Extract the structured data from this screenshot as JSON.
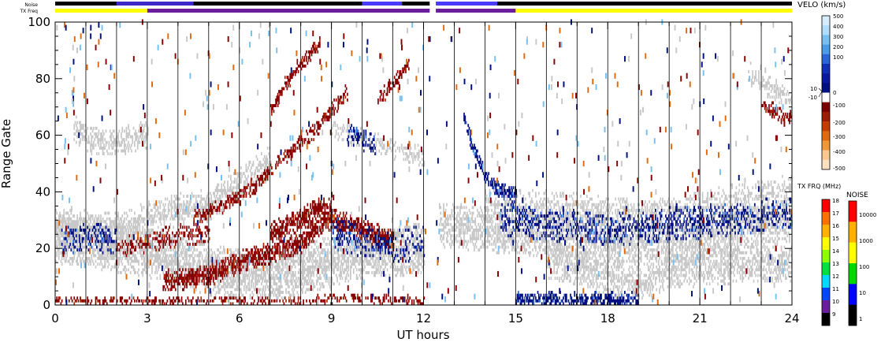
{
  "chart_data": {
    "type": "heatmap",
    "xlabel": "UT hours",
    "ylabel": "Range Gate",
    "xlim": [
      0,
      24
    ],
    "ylim": [
      0,
      100
    ],
    "x_ticks": [
      "0",
      "3",
      "6",
      "9",
      "12",
      "15",
      "18",
      "21",
      "24"
    ],
    "x_tick_values": [
      0,
      3,
      6,
      9,
      12,
      15,
      18,
      21,
      24
    ],
    "y_ticks": [
      "0",
      "20",
      "40",
      "60",
      "80",
      "100"
    ],
    "y_tick_values": [
      0,
      20,
      40,
      60,
      80,
      100
    ],
    "hour_gridlines": true,
    "data_gap": [
      12.2,
      12.4
    ],
    "ground_scatter_color": "#c8c8c8",
    "top_strips": {
      "noise_label": "Noise",
      "txfreq_label": "TX Freq",
      "noise_segments": [
        {
          "start": 0,
          "end": 2.0,
          "color": "#000000"
        },
        {
          "start": 2.0,
          "end": 4.5,
          "color": "#3c28c8"
        },
        {
          "start": 4.5,
          "end": 10.0,
          "color": "#000000"
        },
        {
          "start": 10.0,
          "end": 11.3,
          "color": "#4a3cff"
        },
        {
          "start": 11.3,
          "end": 12.2,
          "color": "#000000"
        },
        {
          "start": 12.4,
          "end": 14.4,
          "color": "#4a3cff"
        },
        {
          "start": 14.4,
          "end": 24,
          "color": "#000000"
        }
      ],
      "txfreq_segments": [
        {
          "start": 0,
          "end": 3.0,
          "color": "#ffff00"
        },
        {
          "start": 3.0,
          "end": 12.2,
          "color": "#6a1e9c"
        },
        {
          "start": 12.4,
          "end": 15.0,
          "color": "#6a1e9c"
        },
        {
          "start": 15.0,
          "end": 24,
          "color": "#ffff00"
        }
      ]
    },
    "velocity_scale": {
      "title": "VELO (km/s)",
      "range": [
        -500,
        500
      ],
      "tick_labels": [
        "500",
        "400",
        "300",
        "200",
        "100",
        "10",
        "0",
        "-10",
        "-100",
        "-200",
        "-300",
        "-400",
        "-500"
      ],
      "colors_top_to_bottom": [
        "#d8ecff",
        "#b0dcff",
        "#78c0f0",
        "#4a9be8",
        "#2a66d8",
        "#1030b8",
        "#0a1aa0",
        "#001080",
        "#ffffff",
        "#7a0000",
        "#9c1c00",
        "#c43c00",
        "#e06a10",
        "#f09838",
        "#f8c890",
        "#fde0c0"
      ]
    },
    "txfreq_scale": {
      "title": "TX FRQ (MHz)",
      "tick_labels": [
        "18",
        "17",
        "16",
        "15",
        "14",
        "13",
        "12",
        "11",
        "10",
        "9"
      ],
      "colors_top_to_bottom": [
        "#ff0000",
        "#ff7000",
        "#ffb000",
        "#ffff00",
        "#8cff00",
        "#00e040",
        "#00d8ff",
        "#0048ff",
        "#6a1e9c",
        "#000000"
      ]
    },
    "noise_scale": {
      "title": "NOISE",
      "tick_labels": [
        "10000",
        "1000",
        "100",
        "10",
        "1"
      ],
      "colors_top_to_bottom": [
        "#ff0000",
        "#ffb000",
        "#ffff00",
        "#00d800",
        "#0000ff",
        "#000000"
      ]
    },
    "echo_bands": [
      {
        "kind": "ground",
        "color": "#c8c8c8",
        "points": [
          [
            0,
            22
          ],
          [
            1,
            22
          ],
          [
            2,
            20
          ],
          [
            3,
            18
          ],
          [
            4,
            15
          ],
          [
            5,
            12
          ],
          [
            6,
            10
          ],
          [
            7,
            10
          ],
          [
            8,
            12
          ],
          [
            9,
            15
          ],
          [
            10,
            18
          ],
          [
            11,
            18
          ],
          [
            12,
            20
          ]
        ],
        "width": 8,
        "density": 0.7
      },
      {
        "kind": "ground",
        "color": "#c8c8c8",
        "points": [
          [
            0,
            28
          ],
          [
            2,
            26
          ],
          [
            3,
            30
          ],
          [
            4,
            33
          ],
          [
            5,
            35
          ],
          [
            6,
            42
          ],
          [
            7,
            50
          ]
        ],
        "width": 5,
        "density": 0.55
      },
      {
        "kind": "ground",
        "color": "#c8c8c8",
        "points": [
          [
            0.6,
            62
          ],
          [
            1,
            58
          ],
          [
            2,
            57
          ],
          [
            3,
            60
          ]
        ],
        "width": 4,
        "density": 0.6
      },
      {
        "kind": "ground",
        "color": "#c8c8c8",
        "points": [
          [
            12.5,
            28
          ],
          [
            14,
            26
          ],
          [
            16,
            24
          ],
          [
            18,
            22
          ],
          [
            20,
            22
          ],
          [
            22,
            25
          ],
          [
            24,
            30
          ]
        ],
        "width": 7,
        "density": 0.6
      },
      {
        "kind": "ground",
        "color": "#c8c8c8",
        "points": [
          [
            14,
            35
          ],
          [
            16,
            34
          ],
          [
            18,
            32
          ],
          [
            20,
            32
          ],
          [
            22,
            36
          ],
          [
            24,
            40
          ]
        ],
        "width": 5,
        "density": 0.45
      },
      {
        "kind": "ground",
        "color": "#c8c8c8",
        "points": [
          [
            16,
            16
          ],
          [
            18,
            10
          ],
          [
            19,
            8
          ],
          [
            20,
            12
          ],
          [
            22,
            14
          ],
          [
            24,
            14
          ]
        ],
        "width": 6,
        "density": 0.55
      },
      {
        "kind": "ground",
        "color": "#c8c8c8",
        "points": [
          [
            9,
            62
          ],
          [
            10,
            58
          ],
          [
            11,
            55
          ],
          [
            12,
            52
          ]
        ],
        "width": 3,
        "density": 0.4
      },
      {
        "kind": "ground",
        "color": "#c8c8c8",
        "points": [
          [
            22.5,
            82
          ],
          [
            23.5,
            75
          ],
          [
            24,
            70
          ]
        ],
        "width": 3,
        "density": 0.5
      },
      {
        "kind": "neg",
        "color": "#8a0000",
        "points": [
          [
            3.5,
            8
          ],
          [
            5,
            10
          ],
          [
            6,
            15
          ],
          [
            7,
            18
          ],
          [
            8,
            22
          ],
          [
            8.5,
            27
          ],
          [
            9,
            30
          ],
          [
            10,
            26
          ],
          [
            11,
            22
          ]
        ],
        "width": 3,
        "density": 0.8
      },
      {
        "kind": "neg",
        "color": "#8a0000",
        "points": [
          [
            7,
            25
          ],
          [
            8,
            30
          ],
          [
            8.6,
            34
          ],
          [
            9,
            33
          ]
        ],
        "width": 3,
        "density": 0.8
      },
      {
        "kind": "neg",
        "color": "#8a0000",
        "points": [
          [
            4.5,
            30
          ],
          [
            5.5,
            35
          ],
          [
            6.5,
            42
          ],
          [
            7.5,
            52
          ],
          [
            8.5,
            62
          ],
          [
            9.5,
            75
          ]
        ],
        "width": 2,
        "density": 0.6
      },
      {
        "kind": "neg",
        "color": "#8a0000",
        "points": [
          [
            7,
            68
          ],
          [
            7.5,
            78
          ],
          [
            8,
            85
          ],
          [
            8.6,
            92
          ]
        ],
        "width": 2,
        "density": 0.7
      },
      {
        "kind": "neg",
        "color": "#8a0000",
        "points": [
          [
            10.5,
            72
          ],
          [
            11,
            78
          ],
          [
            11.5,
            85
          ]
        ],
        "width": 2,
        "density": 0.6
      },
      {
        "kind": "neg",
        "color": "#8a0000",
        "points": [
          [
            2,
            20
          ],
          [
            3,
            22
          ],
          [
            4,
            24
          ],
          [
            5,
            25
          ]
        ],
        "width": 3,
        "density": 0.45
      },
      {
        "kind": "neg",
        "color": "#8a0000",
        "points": [
          [
            0,
            1
          ],
          [
            2,
            1
          ],
          [
            4,
            1
          ],
          [
            8,
            1
          ],
          [
            10,
            2
          ],
          [
            12,
            1
          ]
        ],
        "width": 1.2,
        "density": 0.45
      },
      {
        "kind": "neg",
        "color": "#8a0000",
        "points": [
          [
            23,
            70
          ],
          [
            23.6,
            67
          ],
          [
            24,
            65
          ]
        ],
        "width": 2,
        "density": 0.6
      },
      {
        "kind": "pos",
        "color": "#001080",
        "points": [
          [
            13.3,
            65
          ],
          [
            13.6,
            55
          ],
          [
            14,
            45
          ],
          [
            14.4,
            40
          ],
          [
            15,
            38
          ]
        ],
        "width": 2,
        "density": 0.8
      },
      {
        "kind": "pos",
        "color": "#001080",
        "points": [
          [
            14.5,
            30
          ],
          [
            16,
            28
          ],
          [
            18,
            26
          ],
          [
            20,
            28
          ],
          [
            22,
            30
          ],
          [
            24,
            32
          ]
        ],
        "width": 5,
        "density": 0.4
      },
      {
        "kind": "pos",
        "color": "#001080",
        "points": [
          [
            15,
            1
          ],
          [
            16,
            1.5
          ],
          [
            17,
            1
          ],
          [
            18,
            1.5
          ],
          [
            19,
            1
          ]
        ],
        "width": 2,
        "density": 0.75
      },
      {
        "kind": "pos",
        "color": "#001080",
        "points": [
          [
            0.2,
            22
          ],
          [
            1,
            24
          ],
          [
            2,
            22
          ]
        ],
        "width": 4,
        "density": 0.35
      },
      {
        "kind": "pos",
        "color": "#001080",
        "points": [
          [
            9.5,
            60
          ],
          [
            10,
            58
          ],
          [
            10.4,
            55
          ]
        ],
        "width": 3,
        "density": 0.45
      },
      {
        "kind": "pos",
        "color": "#001080",
        "points": [
          [
            9,
            25
          ],
          [
            10,
            22
          ],
          [
            11,
            20
          ],
          [
            12,
            22
          ]
        ],
        "width": 5,
        "density": 0.3
      }
    ]
  }
}
